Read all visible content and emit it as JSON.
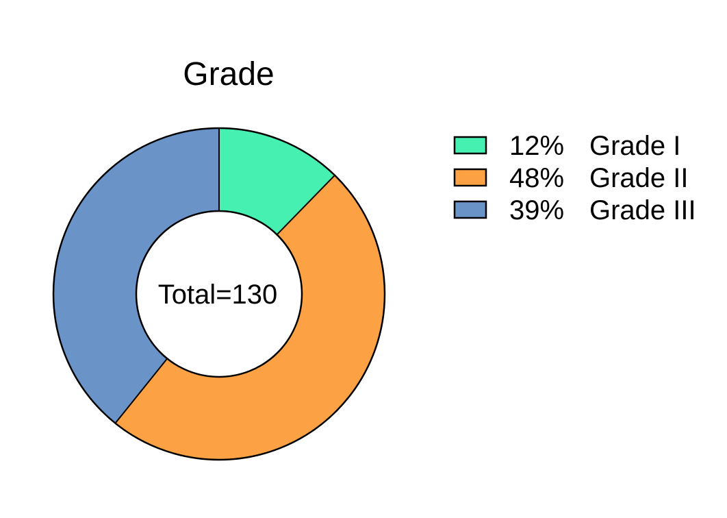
{
  "chart_data": {
    "type": "pie",
    "variant": "donut",
    "title": "Grade",
    "center_label": "Total=130",
    "total": 130,
    "categories": [
      "Grade I",
      "Grade II",
      "Grade III"
    ],
    "values": [
      16,
      63,
      51
    ],
    "percent_labels": [
      "12%",
      "48%",
      "39%"
    ],
    "colors": [
      "#46f0b0",
      "#fca244",
      "#6a93c8"
    ],
    "start_angle": "12 o'clock",
    "direction": "clockwise",
    "legend_position": "right"
  }
}
